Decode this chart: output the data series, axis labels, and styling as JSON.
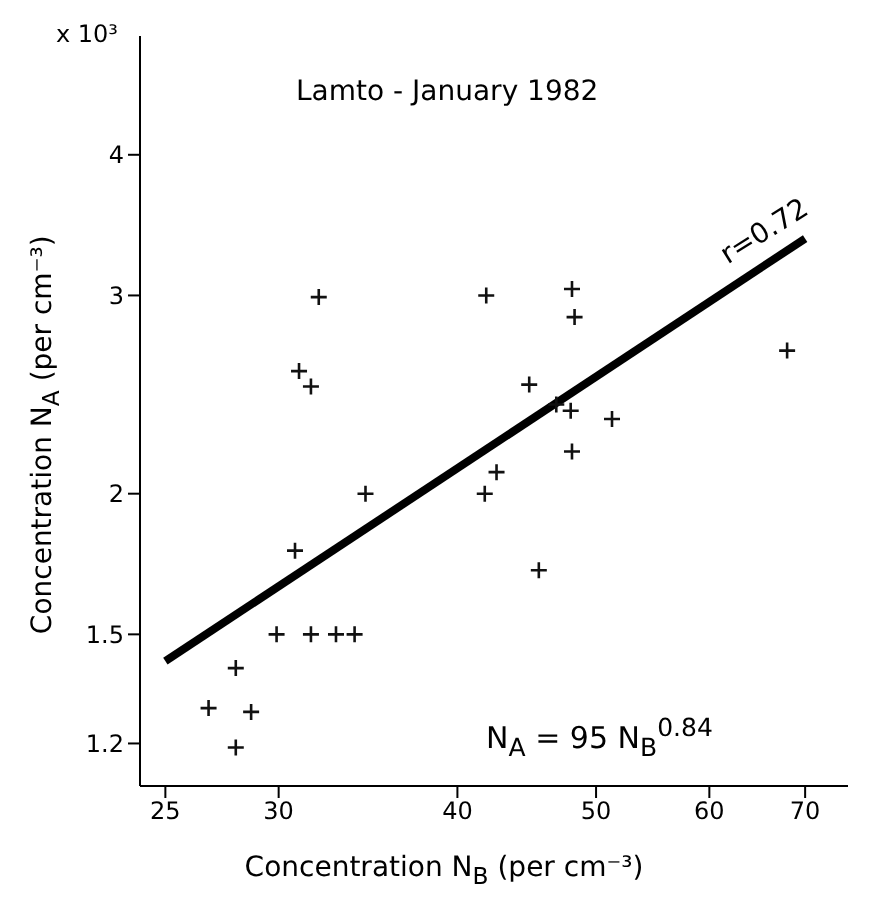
{
  "chart_data": {
    "type": "scatter",
    "title": "Lamto - January 1982",
    "xlabel": "Concentration N$_{B}$ (per cm⁻³)",
    "ylabel": "Concentration N$_{A}$ (per cm⁻³)",
    "log": "xy",
    "marker": "cross",
    "xlim": [
      24,
      75
    ],
    "xticks": [
      25,
      30,
      40,
      50,
      60,
      70
    ],
    "ylim": [
      1.1,
      5.1
    ],
    "yticks": [
      1.2,
      1.5,
      2,
      3,
      4
    ],
    "annotations": [
      "x 10³",
      "r=0.72",
      "N$_{A}$ = 95 N$_{B}$$^{0.84}$"
    ],
    "series": [
      {
        "color": "#111111",
        "x": [
          26.8,
          28.0,
          28.7,
          28.0,
          29.9,
          31.6,
          32.9,
          33.9,
          30.8,
          34.5,
          41.8,
          42.6,
          45.6,
          48.1,
          32.0,
          41.9,
          48.1,
          48.3,
          31.0,
          31.6,
          44.9,
          46.9,
          48.0,
          51.3,
          68.0
        ],
        "values": [
          1.29,
          1.4,
          1.28,
          1.19,
          1.5,
          1.5,
          1.5,
          1.5,
          1.78,
          2.0,
          2.0,
          2.09,
          1.71,
          2.18,
          2.99,
          3.0,
          3.04,
          2.87,
          2.57,
          2.49,
          2.5,
          2.4,
          2.37,
          2.33,
          2.68
        ]
      },
      {
        "type": "line",
        "marker": "none",
        "color": "#000000",
        "x": [
          25,
          70
        ],
        "values": [
          1.42,
          3.37
        ]
      }
    ]
  }
}
